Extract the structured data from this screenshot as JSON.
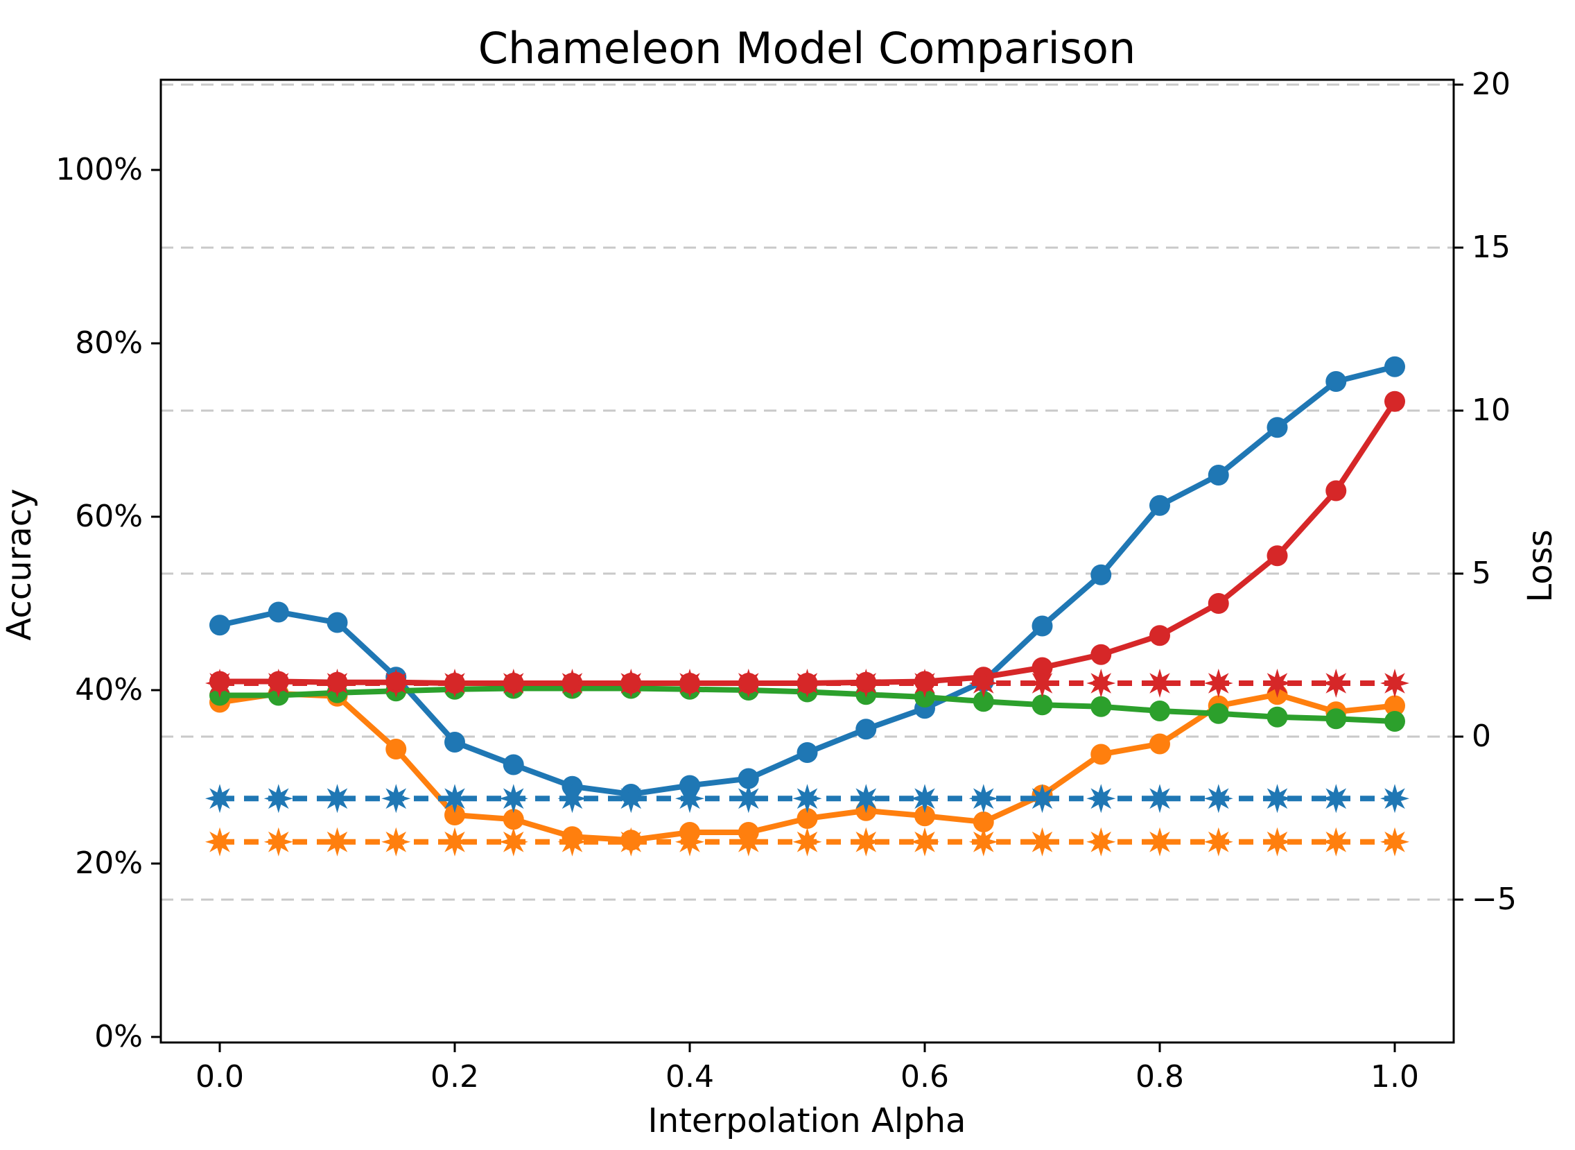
{
  "title": "Chameleon Model Comparison",
  "axes": {
    "x": {
      "label": "Interpolation Alpha",
      "tick_labels": [
        "0.0",
        "0.2",
        "0.4",
        "0.6",
        "0.8",
        "1.0"
      ],
      "tick_values": [
        0.0,
        0.2,
        0.4,
        0.6,
        0.8,
        1.0
      ],
      "range": [
        -0.05,
        1.05
      ]
    },
    "y_left": {
      "label": "Accuracy",
      "tick_labels": [
        "0%",
        "20%",
        "40%",
        "60%",
        "80%",
        "100%"
      ],
      "tick_values": [
        0,
        20,
        40,
        60,
        80,
        100
      ],
      "range_pct": [
        0,
        110.4
      ]
    },
    "y_right": {
      "label": "Loss",
      "tick_labels": [
        "20",
        "15",
        "10",
        "5",
        "0",
        "−5"
      ],
      "tick_values": [
        20,
        15,
        10,
        5,
        0,
        -5
      ],
      "range": [
        -9.4,
        20.15
      ]
    }
  },
  "grid": {
    "axis": "y_right",
    "values": [
      20,
      15,
      10,
      5,
      0,
      -5
    ],
    "color": "#c9c9c9",
    "style": "dashed"
  },
  "legend": null,
  "colors": {
    "blue": "#1f77b4",
    "orange": "#ff7f0e",
    "green": "#2ca02c",
    "red": "#d62728",
    "grid": "#c9c9c9",
    "spine": "#000000",
    "background": "#ffffff"
  },
  "chart_data": {
    "type": "line",
    "title": "Chameleon Model Comparison",
    "xlabel": "Interpolation Alpha",
    "ylabel_left": "Accuracy",
    "ylabel_right": "Loss",
    "x": [
      0.0,
      0.05,
      0.1,
      0.15,
      0.2,
      0.25,
      0.3,
      0.35,
      0.4,
      0.45,
      0.5,
      0.55,
      0.6,
      0.65,
      0.7,
      0.75,
      0.8,
      0.85,
      0.9,
      0.95,
      1.0
    ],
    "series": [
      {
        "name": "blue-solid-accuracy",
        "color": "#1f77b4",
        "line_style": "solid",
        "marker": "circle",
        "y_axis": "left",
        "values": [
          47.5,
          49.0,
          47.8,
          41.5,
          34.0,
          31.4,
          28.9,
          28.0,
          29.0,
          29.8,
          32.8,
          35.5,
          37.9,
          41.0,
          47.4,
          53.3,
          61.3,
          64.8,
          70.3,
          75.6,
          77.3
        ]
      },
      {
        "name": "orange-solid-accuracy",
        "color": "#ff7f0e",
        "line_style": "solid",
        "marker": "circle",
        "y_axis": "left",
        "values": [
          38.6,
          39.6,
          39.3,
          33.2,
          25.6,
          25.1,
          23.1,
          22.7,
          23.6,
          23.6,
          25.2,
          26.1,
          25.5,
          24.8,
          27.9,
          32.6,
          33.8,
          38.2,
          39.5,
          37.5,
          38.2
        ]
      },
      {
        "name": "green-solid-accuracy",
        "color": "#2ca02c",
        "line_style": "solid",
        "marker": "circle",
        "y_axis": "left",
        "values": [
          39.4,
          39.4,
          39.7,
          39.9,
          40.1,
          40.2,
          40.2,
          40.2,
          40.1,
          40.0,
          39.8,
          39.5,
          39.2,
          38.7,
          38.3,
          38.1,
          37.6,
          37.3,
          36.9,
          36.7,
          36.4
        ]
      },
      {
        "name": "red-solid-accuracy",
        "color": "#d62728",
        "line_style": "solid",
        "marker": "circle",
        "y_axis": "left",
        "values": [
          41.0,
          41.0,
          40.9,
          40.9,
          40.8,
          40.8,
          40.8,
          40.8,
          40.8,
          40.8,
          40.8,
          40.9,
          41.0,
          41.5,
          42.6,
          44.1,
          46.3,
          50.0,
          55.5,
          63.0,
          73.3
        ]
      },
      {
        "name": "blue-dashed-flat-reference",
        "color": "#1f77b4",
        "line_style": "dashed",
        "marker": "star8",
        "y_axis": "left",
        "constant_accuracy_pct": 27.5,
        "equivalent_loss_on_right_axis": -1.9,
        "values": [
          27.5,
          27.5,
          27.5,
          27.5,
          27.5,
          27.5,
          27.5,
          27.5,
          27.5,
          27.5,
          27.5,
          27.5,
          27.5,
          27.5,
          27.5,
          27.5,
          27.5,
          27.5,
          27.5,
          27.5,
          27.5
        ]
      },
      {
        "name": "orange-dashed-flat-reference",
        "color": "#ff7f0e",
        "line_style": "dashed",
        "marker": "star8",
        "y_axis": "left",
        "constant_accuracy_pct": 22.5,
        "equivalent_loss_on_right_axis": -3.25,
        "values": [
          22.5,
          22.5,
          22.5,
          22.5,
          22.5,
          22.5,
          22.5,
          22.5,
          22.5,
          22.5,
          22.5,
          22.5,
          22.5,
          22.5,
          22.5,
          22.5,
          22.5,
          22.5,
          22.5,
          22.5,
          22.5
        ]
      },
      {
        "name": "red-dashed-flat-reference",
        "color": "#d62728",
        "line_style": "dashed",
        "marker": "star8",
        "y_axis": "left",
        "constant_accuracy_pct": 40.8,
        "equivalent_loss_on_right_axis": 1.65,
        "values": [
          40.8,
          40.8,
          40.8,
          40.8,
          40.8,
          40.8,
          40.8,
          40.8,
          40.8,
          40.8,
          40.8,
          40.8,
          40.8,
          40.8,
          40.8,
          40.8,
          40.8,
          40.8,
          40.8,
          40.8,
          40.8
        ]
      }
    ],
    "layout_hints": {
      "grid": "dashed horizontal gridlines at right-axis (Loss) tick values",
      "legend_position": "none",
      "marker_note": "solid lines use filled circle markers; dashed lines use filled 8-point star markers at every x step"
    }
  }
}
